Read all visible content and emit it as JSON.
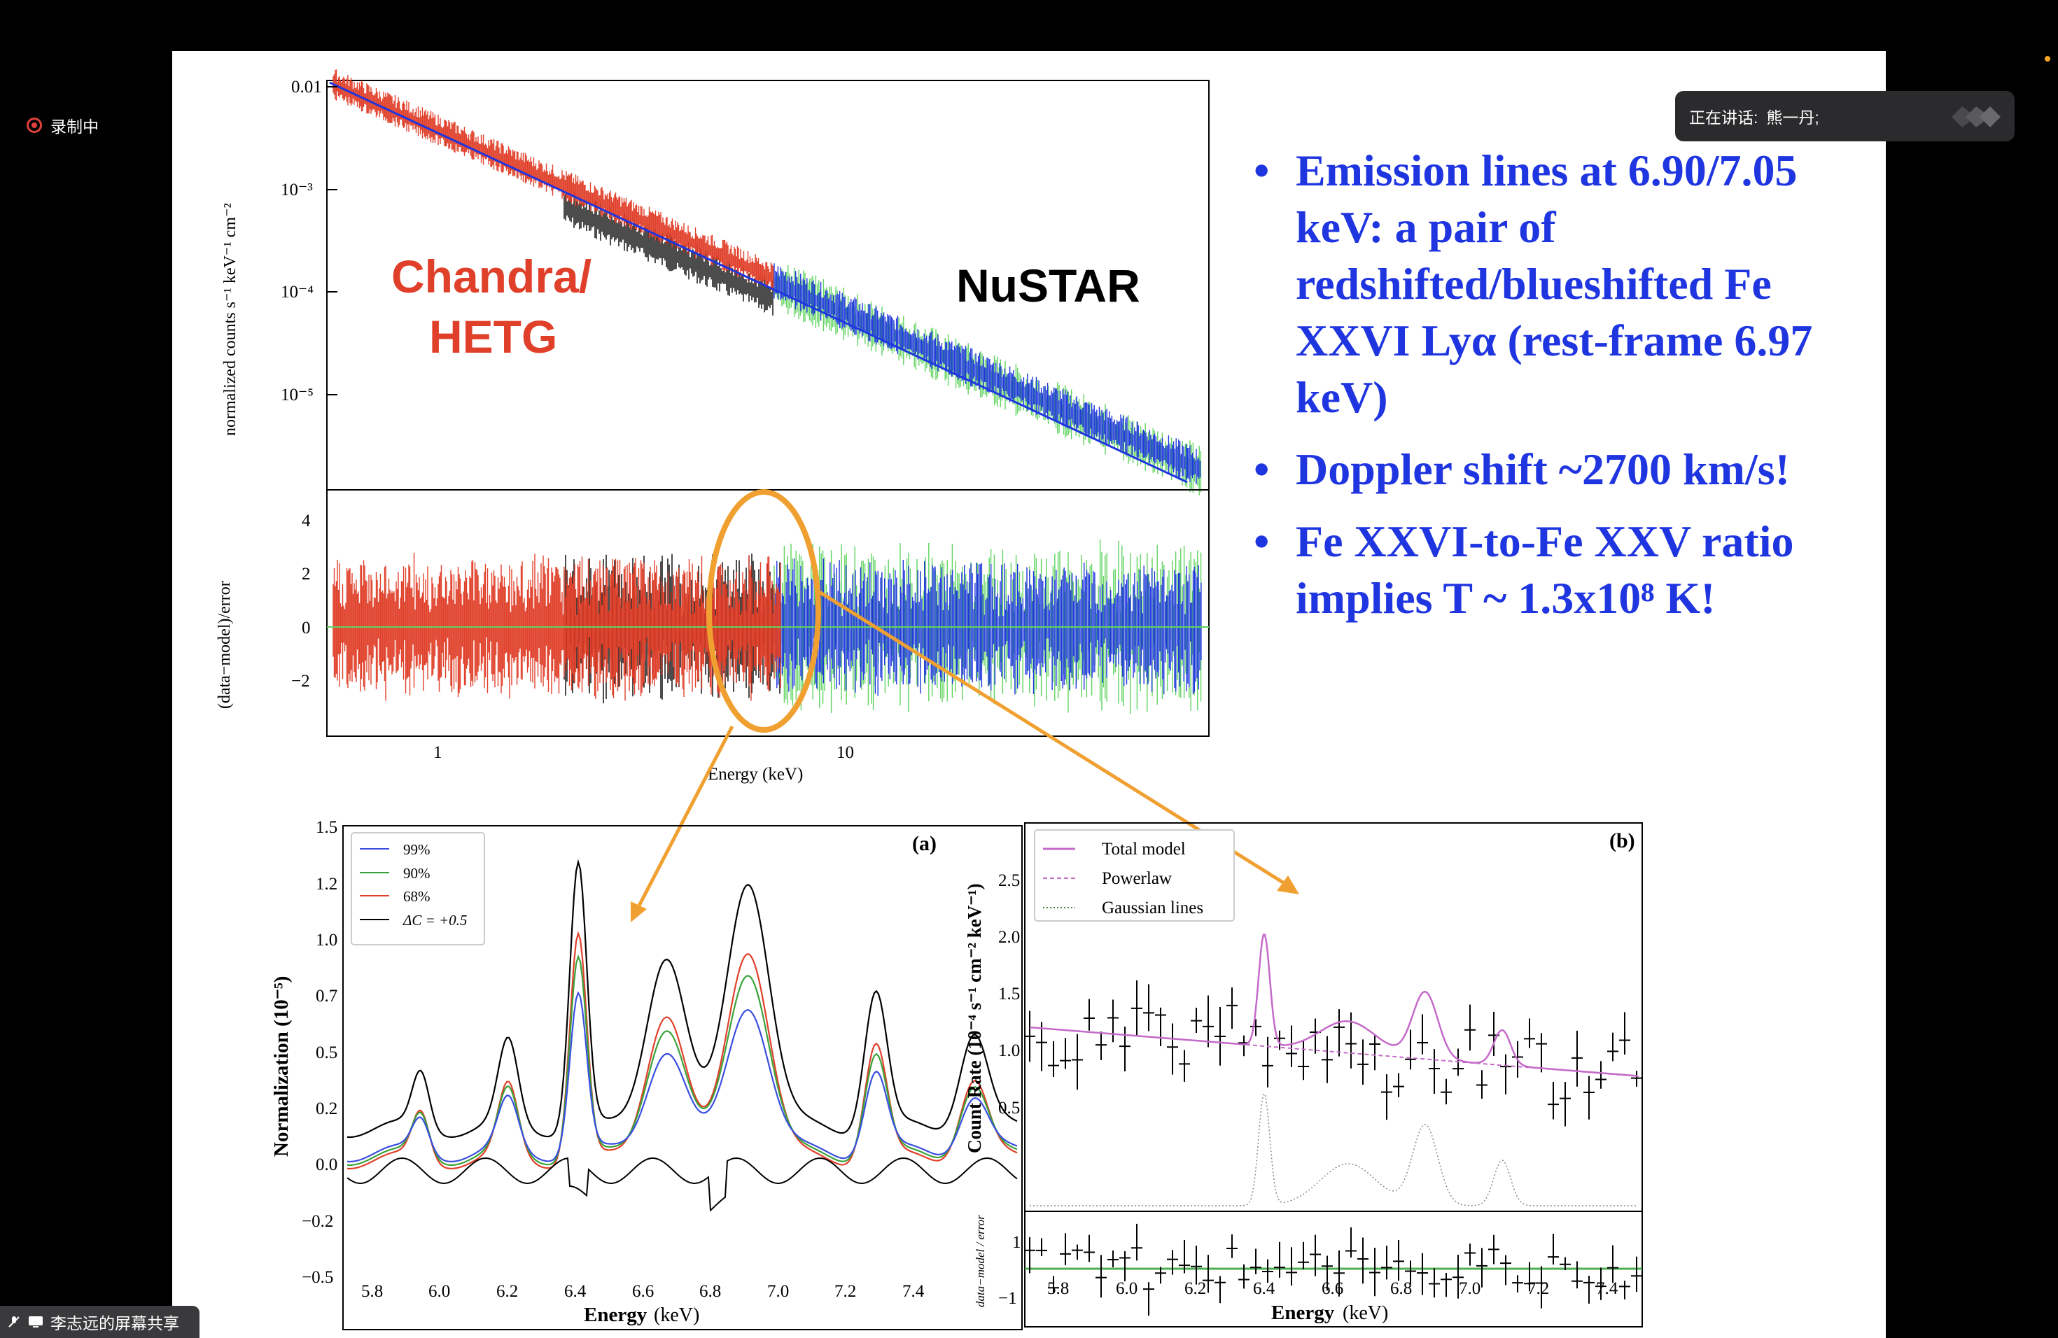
{
  "recording": {
    "label": "录制中"
  },
  "speaker_toast": {
    "label": "正在讲话:",
    "name": "熊一丹;"
  },
  "screen_share": {
    "label": "李志远的屏幕共享"
  },
  "colors": {
    "chandra": "#e0402a",
    "nustar": "#1f35e0",
    "green": "#5fd35f",
    "annotation": "#f0a030"
  },
  "bullets": [
    "Emission lines at 6.90/7.05 keV: a pair of redshifted/blueshifted Fe XXVI Lyα (rest-frame 6.97 keV)",
    "Doppler shift ~2700 km/s!",
    "Fe XXVI-to-Fe XXV ratio implies T ~ 1.3x10⁸ K!"
  ],
  "spectrum": {
    "ylabel_top": "normalized counts s⁻¹ keV⁻¹ cm⁻²",
    "ylabel_bottom": "(data−model)/error",
    "xlabel": "Energy (keV)",
    "yticks_top": [
      "0.01",
      "10⁻³",
      "10⁻⁴",
      "10⁻⁵"
    ],
    "yticks_bottom": [
      "4",
      "2",
      "0",
      "−2"
    ],
    "xticks": [
      "1",
      "10"
    ],
    "label_chandra_1": "Chandra/",
    "label_chandra_2": "HETG",
    "label_nustar": "NuSTAR"
  },
  "panel_a": {
    "tag": "(a)",
    "ylabel": "Normalization (10⁻⁵)",
    "xlabel": "Energy",
    "xlabel_unit": "(keV)",
    "yticks": [
      "1.5",
      "1.2",
      "1.0",
      "0.7",
      "0.5",
      "0.2",
      "0.0",
      "−0.2",
      "−0.5"
    ],
    "xticks": [
      "5.8",
      "6.0",
      "6.2",
      "6.4",
      "6.6",
      "6.8",
      "7.0",
      "7.2",
      "7.4"
    ],
    "legend": [
      "99%",
      "90%",
      "68%",
      "ΔC = +0.5"
    ]
  },
  "panel_b": {
    "tag": "(b)",
    "ylabel": "Count Rate (10⁻⁴ s⁻¹ cm⁻² keV⁻¹)",
    "resid_label": "data−model / error",
    "xlabel": "Energy",
    "xlabel_unit": "(keV)",
    "yticks": [
      "2.5",
      "2.0",
      "1.5",
      "1.0",
      "0.5"
    ],
    "resid_yticks": [
      "1",
      "−1"
    ],
    "xticks": [
      "5.8",
      "6.0",
      "6.2",
      "6.4",
      "6.6",
      "6.8",
      "7.0",
      "7.2",
      "7.4"
    ],
    "legend": [
      "Total model",
      "Powerlaw",
      "Gaussian lines"
    ]
  }
}
